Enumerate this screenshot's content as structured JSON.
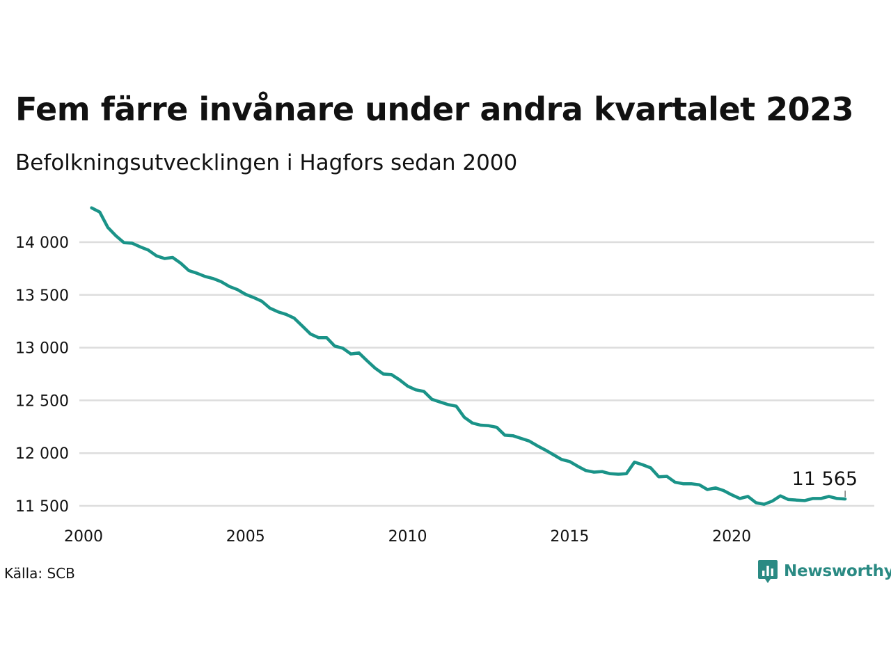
{
  "title": "Fem färre invånare under andra kvartalet 2023",
  "subtitle": "Befolkningsutvecklingen i Hagfors sedan 2000",
  "source": "Källa: SCB",
  "brand": {
    "name": "Newsworthy",
    "icon": "newsworthy-logo-icon"
  },
  "colors": {
    "line": "#1a9388",
    "grid": "#dddddd",
    "text": "#111111",
    "brand": "#2a8a83"
  },
  "chart_data": {
    "type": "line",
    "title": "Fem färre invånare under andra kvartalet 2023",
    "subtitle": "Befolkningsutvecklingen i Hagfors sedan 2000",
    "xlabel": "",
    "ylabel": "",
    "xlim": [
      2000,
      2024.4
    ],
    "ylim": [
      11450,
      14330
    ],
    "grid": true,
    "x_ticks": [
      2000,
      2005,
      2010,
      2015,
      2020
    ],
    "x_tick_labels": [
      "2000",
      "2005",
      "2010",
      "2015",
      "2020"
    ],
    "y_ticks": [
      11500,
      12000,
      12500,
      13000,
      13500,
      14000
    ],
    "y_tick_labels": [
      "11 500",
      "12 000",
      "12 500",
      "13 000",
      "13 500",
      "14 000"
    ],
    "series": [
      {
        "x": [
          2000.25,
          2000.5,
          2000.75,
          2001.0,
          2001.25,
          2001.5,
          2001.75,
          2002.0,
          2002.25,
          2002.5,
          2002.75,
          2003.0,
          2003.25,
          2003.5,
          2003.75,
          2004.0,
          2004.25,
          2004.5,
          2004.75,
          2005.0,
          2005.25,
          2005.5,
          2005.75,
          2006.0,
          2006.25,
          2006.5,
          2006.75,
          2007.0,
          2007.25,
          2007.5,
          2007.75,
          2008.0,
          2008.25,
          2008.5,
          2008.75,
          2009.0,
          2009.25,
          2009.5,
          2009.75,
          2010.0,
          2010.25,
          2010.5,
          2010.75,
          2011.0,
          2011.25,
          2011.5,
          2011.75,
          2012.0,
          2012.25,
          2012.5,
          2012.75,
          2013.0,
          2013.25,
          2013.5,
          2013.75,
          2014.0,
          2014.25,
          2014.5,
          2014.75,
          2015.0,
          2015.25,
          2015.5,
          2015.75,
          2016.0,
          2016.25,
          2016.5,
          2016.75,
          2017.0,
          2017.25,
          2017.5,
          2017.75,
          2018.0,
          2018.25,
          2018.5,
          2018.75,
          2019.0,
          2019.25,
          2019.5,
          2019.75,
          2020.0,
          2020.25,
          2020.5,
          2020.75,
          2021.0,
          2021.25,
          2021.5,
          2021.75,
          2022.0,
          2022.25,
          2022.5,
          2022.75,
          2023.0,
          2023.25,
          2023.5
        ],
        "values": [
          14325,
          14285,
          14140,
          14060,
          13995,
          13990,
          13955,
          13925,
          13870,
          13845,
          13855,
          13800,
          13730,
          13705,
          13675,
          13655,
          13625,
          13580,
          13550,
          13505,
          13475,
          13440,
          13375,
          13340,
          13315,
          13280,
          13205,
          13130,
          13095,
          13095,
          13015,
          12995,
          12940,
          12950,
          12875,
          12805,
          12750,
          12745,
          12695,
          12635,
          12600,
          12585,
          12510,
          12485,
          12460,
          12445,
          12340,
          12285,
          12265,
          12260,
          12245,
          12170,
          12165,
          12140,
          12115,
          12070,
          12030,
          11985,
          11940,
          11920,
          11875,
          11835,
          11820,
          11825,
          11805,
          11800,
          11805,
          11915,
          11890,
          11860,
          11775,
          11780,
          11725,
          11710,
          11710,
          11700,
          11655,
          11670,
          11645,
          11605,
          11570,
          11590,
          11530,
          11515,
          11545,
          11595,
          11560,
          11555,
          11550,
          11570,
          11570,
          11590,
          11570,
          11565
        ]
      }
    ],
    "annotations": [
      {
        "x": 2023.5,
        "y": 11565,
        "text": "11 565"
      }
    ]
  }
}
